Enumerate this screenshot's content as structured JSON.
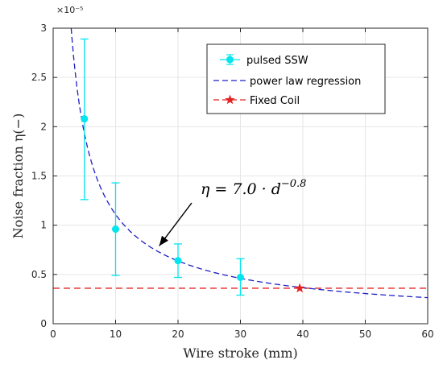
{
  "chart_data": {
    "type": "scatter",
    "title": "",
    "xlabel": "Wire stroke (mm)",
    "ylabel": "Noise fraction η(−)",
    "y_exponent_label": "×10⁻⁵",
    "xlim": [
      0,
      60
    ],
    "ylim": [
      0,
      3
    ],
    "y_scale_factor": 1e-05,
    "x_ticks": [
      0,
      10,
      20,
      30,
      40,
      50,
      60
    ],
    "y_ticks": [
      0,
      0.5,
      1,
      1.5,
      2,
      2.5,
      3
    ],
    "y_tick_labels": [
      "0",
      "0.5",
      "1",
      "1.5",
      "2",
      "2.5",
      "3"
    ],
    "grid": true,
    "legend_position": "top-right",
    "series": [
      {
        "name": "pulsed SSW",
        "kind": "errorbar",
        "color": "#00e5ee",
        "x": [
          5,
          10,
          20,
          30
        ],
        "y": [
          2.08,
          0.96,
          0.64,
          0.47
        ],
        "y_low": [
          1.26,
          0.49,
          0.47,
          0.29
        ],
        "y_high": [
          2.89,
          1.43,
          0.81,
          0.66
        ]
      },
      {
        "name": "power law regression",
        "kind": "dashed-line",
        "color": "#1f1fc8",
        "coefficient": 7.0,
        "exponent": -0.8,
        "x_range": [
          3,
          60
        ]
      },
      {
        "name": "Fixed Coil",
        "kind": "dashed-line-with-star",
        "color": "#e52020",
        "y": 0.36,
        "star_x": 39.5
      }
    ],
    "annotation": {
      "text_prefix": "η = 7.0 · d",
      "text_superscript": "−0.8",
      "arrow_target": [
        17,
        0.79
      ]
    }
  }
}
